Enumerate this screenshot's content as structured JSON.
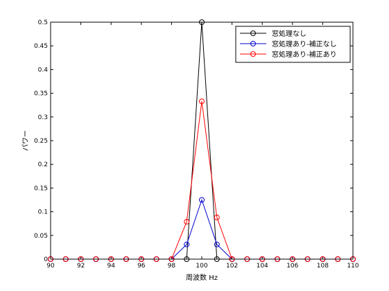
{
  "chart_data": {
    "type": "line",
    "xlabel": "周波数 Hz",
    "ylabel": "パワー",
    "xlim": [
      90,
      110
    ],
    "ylim": [
      0,
      0.5
    ],
    "xticks": [
      90,
      92,
      94,
      96,
      98,
      100,
      102,
      104,
      106,
      108,
      110
    ],
    "yticks": [
      0,
      0.05,
      0.1,
      0.15,
      0.2,
      0.25,
      0.3,
      0.35,
      0.4,
      0.45,
      0.5
    ],
    "grid": false,
    "legend_position": "top-right",
    "x": [
      90,
      91,
      92,
      93,
      94,
      95,
      96,
      97,
      98,
      99,
      100,
      101,
      102,
      103,
      104,
      105,
      106,
      107,
      108,
      109,
      110
    ],
    "series": [
      {
        "name": "窓処理なし",
        "color": "#000000",
        "marker": "circle",
        "values": [
          0,
          0,
          0,
          0,
          0,
          0,
          0,
          0,
          0,
          0,
          0.5,
          0,
          0,
          0,
          0,
          0,
          0,
          0,
          0,
          0,
          0
        ]
      },
      {
        "name": "窓処理あり-補正なし",
        "color": "#0000cc",
        "marker": "circle",
        "values": [
          0,
          0,
          0,
          0,
          0,
          0,
          0,
          0,
          0,
          0.031,
          0.125,
          0.031,
          0,
          0,
          0,
          0,
          0,
          0,
          0,
          0,
          0
        ]
      },
      {
        "name": "窓処理あり-補正あり",
        "color": "#ff0000",
        "marker": "circle",
        "values": [
          0,
          0,
          0,
          0,
          0,
          0,
          0,
          0,
          0,
          0.079,
          0.333,
          0.088,
          0,
          0,
          0,
          0,
          0,
          0,
          0,
          0,
          0
        ]
      }
    ]
  }
}
